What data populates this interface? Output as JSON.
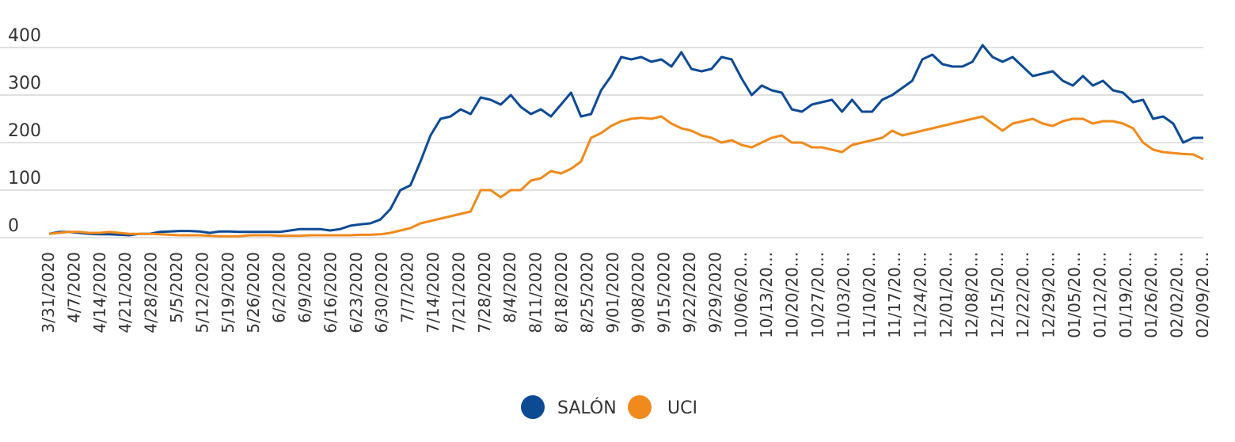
{
  "chart_data": {
    "type": "line",
    "title": "",
    "xlabel": "",
    "ylabel": "",
    "ylim": [
      0,
      400
    ],
    "yticks": [
      0,
      100,
      200,
      300,
      400
    ],
    "grid": true,
    "legend_position": "bottom-center",
    "x_tick_labels": [
      "3/31/2020",
      "4/7/2020",
      "4/14/2020",
      "4/21/2020",
      "4/28/2020",
      "5/5/2020",
      "5/12/2020",
      "5/19/2020",
      "5/26/2020",
      "6/2/2020",
      "6/9/2020",
      "6/16/2020",
      "6/23/2020",
      "6/30/2020",
      "7/7/2020",
      "7/14/2020",
      "7/21/2020",
      "7/28/2020",
      "8/4/2020",
      "8/11/2020",
      "8/18/2020",
      "8/25/2020",
      "9/01/2020",
      "9/08/2020",
      "9/15/2020",
      "9/22/2020",
      "9/29/2020",
      "10/06/20...",
      "10/13/20...",
      "10/20/20...",
      "10/27/20...",
      "11/03/20...",
      "11/10/20...",
      "11/17/20...",
      "11/24/20...",
      "12/01/20...",
      "12/08/20...",
      "12/15/20...",
      "12/22/20...",
      "12/29/20...",
      "01/05/20...",
      "01/12/20...",
      "01/19/20...",
      "01/26/20...",
      "02/02/20...",
      "02/09/20..."
    ],
    "series": [
      {
        "name": "SALÓN",
        "color": "#0d4a94",
        "values": [
          8,
          12,
          12,
          10,
          8,
          7,
          7,
          6,
          5,
          8,
          8,
          12,
          13,
          14,
          14,
          13,
          10,
          13,
          13,
          12,
          12,
          12,
          12,
          12,
          15,
          18,
          18,
          18,
          15,
          18,
          25,
          28,
          30,
          38,
          60,
          100,
          110,
          160,
          215,
          250,
          255,
          270,
          260,
          295,
          290,
          280,
          300,
          275,
          260,
          270,
          255,
          280,
          305,
          255,
          260,
          310,
          340,
          380,
          375,
          380,
          370,
          375,
          360,
          390,
          355,
          350,
          355,
          380,
          375,
          335,
          300,
          320,
          310,
          305,
          270,
          265,
          280,
          285,
          290,
          265,
          290,
          265,
          265,
          290,
          300,
          315,
          330,
          375,
          385,
          365,
          360,
          360,
          370,
          405,
          380,
          370,
          380,
          360,
          340,
          345,
          350,
          330,
          320,
          340,
          320,
          330,
          310,
          305,
          285,
          290,
          250,
          255,
          240,
          200,
          210,
          210
        ]
      },
      {
        "name": "UCI",
        "color": "#f08a1c",
        "values": [
          8,
          10,
          12,
          12,
          10,
          10,
          12,
          10,
          8,
          8,
          8,
          7,
          6,
          5,
          5,
          5,
          4,
          3,
          3,
          3,
          5,
          5,
          5,
          4,
          4,
          4,
          5,
          5,
          5,
          5,
          5,
          6,
          6,
          7,
          10,
          15,
          20,
          30,
          35,
          40,
          45,
          50,
          55,
          100,
          100,
          85,
          100,
          100,
          120,
          125,
          140,
          135,
          145,
          160,
          210,
          220,
          235,
          245,
          250,
          252,
          250,
          255,
          240,
          230,
          225,
          215,
          210,
          200,
          205,
          195,
          190,
          200,
          210,
          215,
          200,
          200,
          190,
          190,
          185,
          180,
          195,
          200,
          205,
          210,
          225,
          215,
          220,
          225,
          230,
          235,
          240,
          245,
          250,
          255,
          240,
          225,
          240,
          245,
          250,
          240,
          235,
          245,
          250,
          250,
          240,
          245,
          245,
          240,
          230,
          200,
          185,
          180,
          178,
          176,
          175,
          165
        ]
      }
    ]
  },
  "legend": [
    {
      "label": "SALÓN",
      "color": "#0d4a94"
    },
    {
      "label": "UCI",
      "color": "#f08a1c"
    }
  ]
}
